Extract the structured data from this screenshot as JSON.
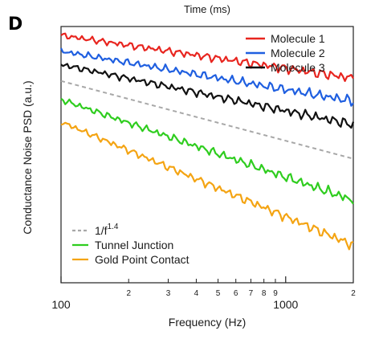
{
  "panel_label": "D",
  "chart_data": {
    "type": "line",
    "title": "Time (ms)",
    "xlabel": "Frequency (Hz)",
    "ylabel": "Conductance Noise PSD (a.u.)",
    "x_scale": "log",
    "xlim": [
      100,
      2000
    ],
    "y_scale": "log",
    "ylim": [
      1,
      6
    ],
    "y_units_note": "",
    "x_major_ticks": [
      {
        "value": 100,
        "label": "100"
      },
      {
        "value": 1000,
        "label": "1000"
      }
    ],
    "x_minor_ticks": [
      {
        "value": 200,
        "label": "2"
      },
      {
        "value": 300,
        "label": "3"
      },
      {
        "value": 400,
        "label": "4"
      },
      {
        "value": 500,
        "label": "5"
      },
      {
        "value": 600,
        "label": "6"
      },
      {
        "value": 700,
        "label": "7"
      },
      {
        "value": 800,
        "label": "8"
      },
      {
        "value": 900,
        "label": "9"
      },
      {
        "value": 2000,
        "label": "2"
      }
    ],
    "series": [
      {
        "name": "Molecule 1",
        "color": "#e8251f",
        "dash": false,
        "y_start": 5.64,
        "y_end": 4.18
      },
      {
        "name": "Molecule 2",
        "color": "#1f5fe0",
        "dash": false,
        "y_start": 5.05,
        "y_end": 3.56
      },
      {
        "name": "Molecule 3",
        "color": "#111111",
        "dash": false,
        "y_start": 4.6,
        "y_end": 3.02
      },
      {
        "name": "1/f^1.4",
        "color": "#a8a8a8",
        "dash": true,
        "y_start": 4.1,
        "y_end": 2.38
      },
      {
        "name": "Tunnel Junction",
        "color": "#2fcd1f",
        "dash": false,
        "y_start": 3.6,
        "y_end": 1.78
      },
      {
        "name": "Gold Point Contact",
        "color": "#f4a413",
        "dash": false,
        "y_start": 3.08,
        "y_end": 1.3
      }
    ],
    "legend_top": {
      "placement": "top-right",
      "entries": [
        "Molecule 1",
        "Molecule 2",
        "Molecule 3"
      ]
    },
    "legend_bottom": {
      "placement": "bottom-left",
      "entries": [
        {
          "text": "1/f",
          "superscript": "1.4"
        },
        {
          "text": "Tunnel Junction",
          "superscript": ""
        },
        {
          "text": "Gold Point Contact",
          "superscript": ""
        }
      ]
    }
  }
}
